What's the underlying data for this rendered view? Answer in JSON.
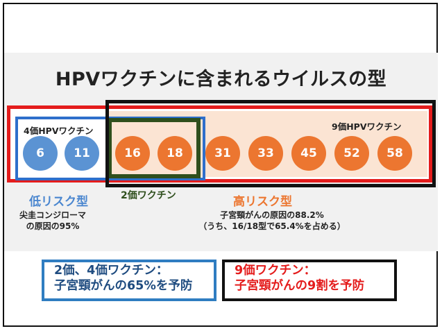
{
  "title": "HPVワクチンに含まれるウイルスの型",
  "vaccines": {
    "four_valent": "4価HPVワクチン",
    "nine_valent": "9価HPVワクチン",
    "two_valent": "2価ワクチン"
  },
  "types": {
    "low_risk": [
      "6",
      "11"
    ],
    "high_risk": [
      "16",
      "18",
      "31",
      "33",
      "45",
      "52",
      "58"
    ]
  },
  "groups": {
    "low_risk": {
      "label": "低リスク型",
      "note_line1": "尖圭コンジローマ",
      "note_line2": "の原因の95%"
    },
    "high_risk": {
      "label": "高リスク型",
      "note_line1": "子宮頸がんの原因の88.2%",
      "note_line2": "（うち、16/18型で65.4%を占める）"
    }
  },
  "summary": {
    "two_four": {
      "line1": "2価、4価ワクチン：",
      "line2": "子宮頸がんの65%を予防"
    },
    "nine": {
      "line1": "9価ワクチン：",
      "line2": "子宮頸がんの9割を予防"
    }
  },
  "colors": {
    "low_risk": "#5b93d3",
    "high_risk": "#ec7630",
    "nine_valent_outline": "#e41c1c",
    "four_valent_outline": "#2e6fcb",
    "two_valent_outline": "#2f4f1d",
    "high_risk_background": "#fbe4d3"
  }
}
